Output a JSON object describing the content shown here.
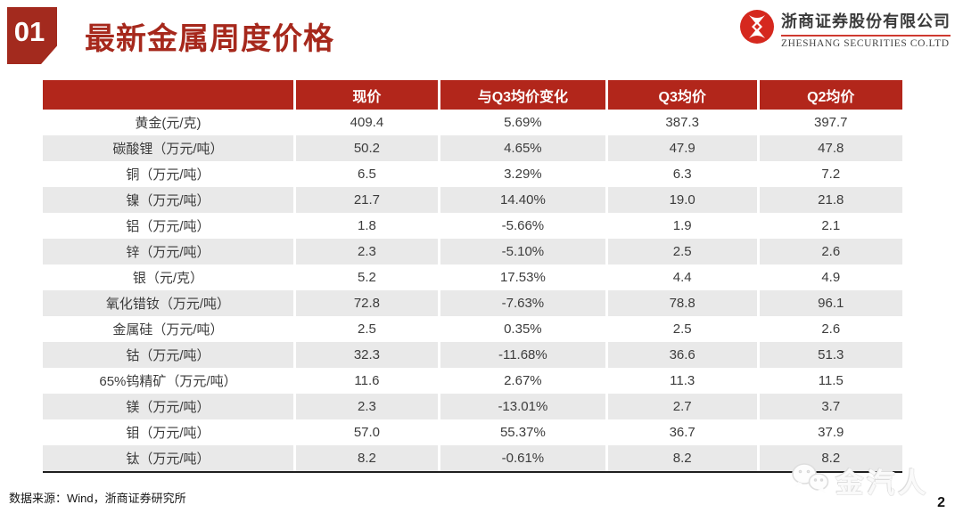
{
  "slide": {
    "section_number": "01",
    "title": "最新金属周度价格",
    "source_note": "数据来源：Wind，浙商证券研究所",
    "page_number": "2"
  },
  "logo": {
    "company_cn": "浙商证券股份有限公司",
    "company_en": "ZHESHANG SECURITIES CO.LTD"
  },
  "watermark": {
    "icon": "wechat-icon",
    "text": "金汽人"
  },
  "colors": {
    "table_header_red": "#b2261b",
    "title_red": "#a6281c",
    "badge_red": "#a32a1e",
    "logo_red": "#d5281e",
    "stripe_gray": "#e9e9e9"
  },
  "chart_data": {
    "type": "table",
    "columns": [
      "",
      "现价",
      "与Q3均价变化",
      "Q3均价",
      "Q2均价"
    ],
    "rows": [
      [
        "黄金(元/克)",
        "409.4",
        "5.69%",
        "387.3",
        "397.7"
      ],
      [
        "碳酸锂（万元/吨）",
        "50.2",
        "4.65%",
        "47.9",
        "47.8"
      ],
      [
        "铜（万元/吨）",
        "6.5",
        "3.29%",
        "6.3",
        "7.2"
      ],
      [
        "镍（万元/吨）",
        "21.7",
        "14.40%",
        "19.0",
        "21.8"
      ],
      [
        "铝（万元/吨）",
        "1.8",
        "-5.66%",
        "1.9",
        "2.1"
      ],
      [
        "锌（万元/吨）",
        "2.3",
        "-5.10%",
        "2.5",
        "2.6"
      ],
      [
        "银（元/克）",
        "5.2",
        "17.53%",
        "4.4",
        "4.9"
      ],
      [
        "氧化错钕（万元/吨）",
        "72.8",
        "-7.63%",
        "78.8",
        "96.1"
      ],
      [
        "金属硅（万元/吨）",
        "2.5",
        "0.35%",
        "2.5",
        "2.6"
      ],
      [
        "钴（万元/吨）",
        "32.3",
        "-11.68%",
        "36.6",
        "51.3"
      ],
      [
        "65%钨精矿（万元/吨）",
        "11.6",
        "2.67%",
        "11.3",
        "11.5"
      ],
      [
        "镁（万元/吨）",
        "2.3",
        "-13.01%",
        "2.7",
        "3.7"
      ],
      [
        "钼（万元/吨）",
        "57.0",
        "55.37%",
        "36.7",
        "37.9"
      ],
      [
        "钛（万元/吨）",
        "8.2",
        "-0.61%",
        "8.2",
        "8.2"
      ]
    ]
  }
}
